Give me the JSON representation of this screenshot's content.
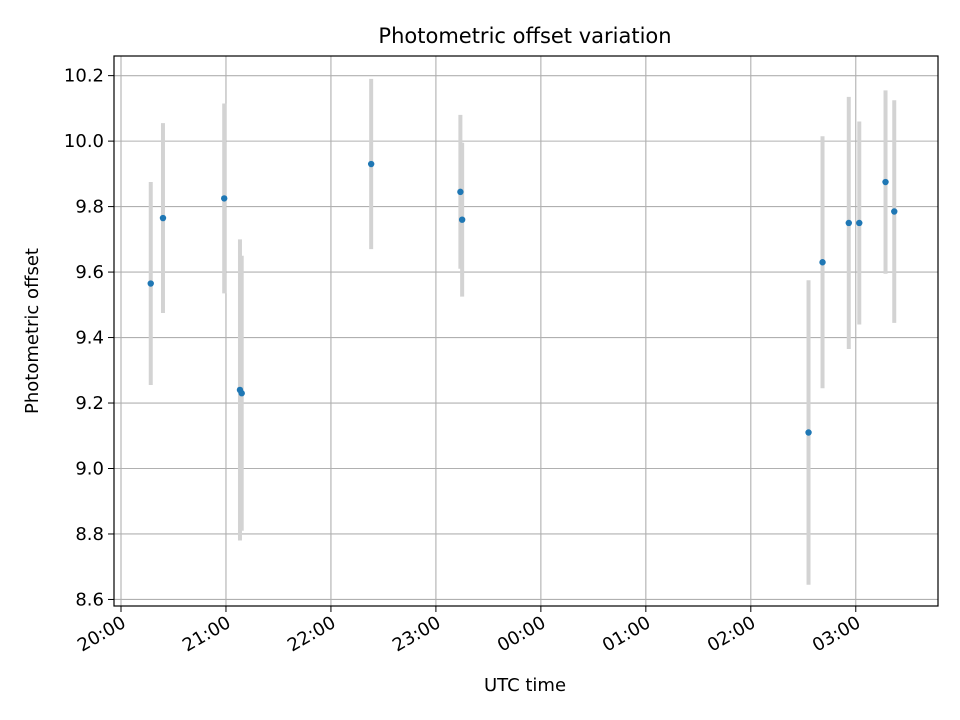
{
  "chart_data": {
    "type": "scatter",
    "title": "Photometric offset variation",
    "xlabel": "UTC time",
    "ylabel": "Photometric offset",
    "x_axis": "time",
    "xlim": [
      "19:56",
      "03:47"
    ],
    "ylim": [
      8.58,
      10.26
    ],
    "x_ticks": [
      {
        "time": "20:00",
        "label": "20:00"
      },
      {
        "time": "21:00",
        "label": "21:00"
      },
      {
        "time": "22:00",
        "label": "22:00"
      },
      {
        "time": "23:00",
        "label": "23:00"
      },
      {
        "time": "00:00",
        "label": "00:00"
      },
      {
        "time": "01:00",
        "label": "01:00"
      },
      {
        "time": "02:00",
        "label": "02:00"
      },
      {
        "time": "03:00",
        "label": "03:00"
      }
    ],
    "y_ticks": [
      {
        "value": 8.6,
        "label": "8.6"
      },
      {
        "value": 8.8,
        "label": "8.8"
      },
      {
        "value": 9.0,
        "label": "9.0"
      },
      {
        "value": 9.2,
        "label": "9.2"
      },
      {
        "value": 9.4,
        "label": "9.4"
      },
      {
        "value": 9.6,
        "label": "9.6"
      },
      {
        "value": 9.8,
        "label": "9.8"
      },
      {
        "value": 10.0,
        "label": "10.0"
      },
      {
        "value": 10.2,
        "label": "10.2"
      }
    ],
    "grid": true,
    "marker_color": "#1f77b4",
    "errorbar_color": "#d3d3d3",
    "points": [
      {
        "time": "20:17",
        "y": 9.565,
        "yerr": 0.31
      },
      {
        "time": "20:24",
        "y": 9.765,
        "yerr": 0.29
      },
      {
        "time": "20:59",
        "y": 9.825,
        "yerr": 0.29
      },
      {
        "time": "21:08",
        "y": 9.24,
        "yerr": 0.46
      },
      {
        "time": "21:09",
        "y": 9.23,
        "yerr": 0.42
      },
      {
        "time": "22:23",
        "y": 9.93,
        "yerr": 0.26
      },
      {
        "time": "23:14",
        "y": 9.845,
        "yerr": 0.235
      },
      {
        "time": "23:15",
        "y": 9.76,
        "yerr": 0.235
      },
      {
        "time": "02:33",
        "y": 9.11,
        "yerr": 0.465
      },
      {
        "time": "02:41",
        "y": 9.63,
        "yerr": 0.385
      },
      {
        "time": "02:56",
        "y": 9.75,
        "yerr": 0.385
      },
      {
        "time": "03:02",
        "y": 9.75,
        "yerr": 0.31
      },
      {
        "time": "03:17",
        "y": 9.875,
        "yerr": 0.28
      },
      {
        "time": "03:22",
        "y": 9.785,
        "yerr": 0.34
      }
    ]
  }
}
